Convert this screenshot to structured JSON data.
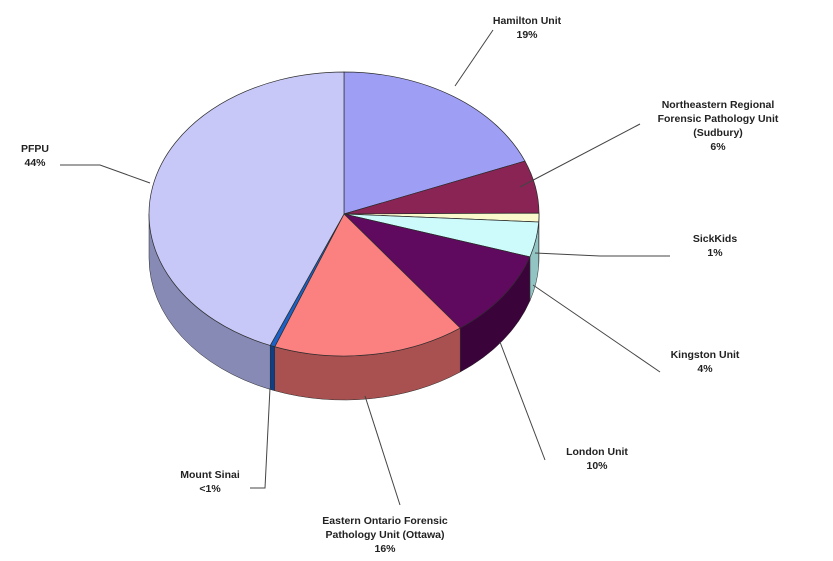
{
  "chart_data": {
    "type": "pie",
    "three_d": true,
    "categories": [
      "Hamilton Unit",
      "Northeastern Regional Forensic Pathology Unit (Sudbury)",
      "SickKids",
      "Kingston Unit",
      "London Unit",
      "Eastern Ontario Forensic Pathology Unit (Ottawa)",
      "Mount Sinai",
      "PFPU"
    ],
    "values": [
      19,
      6,
      1,
      4,
      10,
      16,
      0.4,
      44
    ],
    "labels": [
      {
        "lines": [
          "Hamilton Unit",
          "19%"
        ]
      },
      {
        "lines": [
          "Northeastern Regional",
          "Forensic Pathology Unit",
          "(Sudbury)",
          "6%"
        ]
      },
      {
        "lines": [
          "SickKids",
          "1%"
        ]
      },
      {
        "lines": [
          "Kingston Unit",
          "4%"
        ]
      },
      {
        "lines": [
          "London Unit",
          "10%"
        ]
      },
      {
        "lines": [
          "Eastern Ontario Forensic",
          "Pathology Unit (Ottawa)",
          "16%"
        ]
      },
      {
        "lines": [
          "Mount Sinai",
          "<1%"
        ]
      },
      {
        "lines": [
          "PFPU",
          "44%"
        ]
      }
    ],
    "colors": [
      "#9e9ef5",
      "#8a2454",
      "#fafacd",
      "#cdfbfb",
      "#5f0a5f",
      "#fb8080",
      "#1a62c8",
      "#c8c8f8"
    ],
    "side_colors": [
      "#6b6bb0",
      "#5a1536",
      "#c2c29a",
      "#93c4c4",
      "#3a033a",
      "#a95050",
      "#0e3f85",
      "#868ab4"
    ],
    "start_angle": 0,
    "direction": "clockwise",
    "legend": "none",
    "title": ""
  }
}
